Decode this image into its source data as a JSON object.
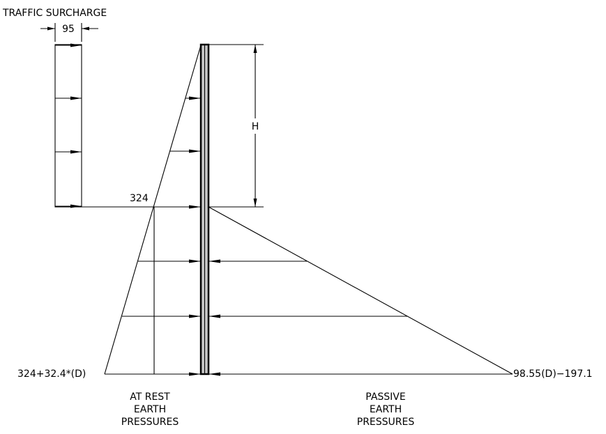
{
  "labels": {
    "traffic_surcharge": "TRAFFIC SURCHARGE",
    "surcharge_value": "95",
    "height_label": "H",
    "at_rest_value_top": "324",
    "at_rest_value_bottom": "324+32.4*(D)",
    "passive_value_bottom": "98.55(D)−197.1",
    "at_rest_caption": [
      "AT REST",
      "EARTH",
      "PRESSURES"
    ],
    "passive_caption": [
      "PASSIVE",
      "EARTH",
      "PRESSURES"
    ]
  },
  "colors": {
    "line": "#000000",
    "wall_fill": "#c8c8c8",
    "background": "#ffffff"
  }
}
